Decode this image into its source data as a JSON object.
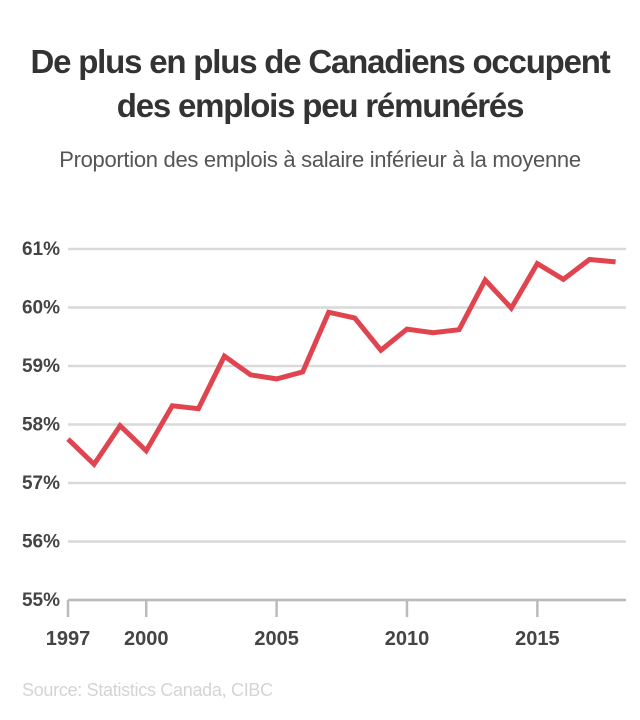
{
  "title_line1": "De plus en plus de Canadiens occupent",
  "title_line2": "des emplois peu rémunérés",
  "subtitle": "Proportion des emplois à salaire inférieur à la moyenne",
  "source": "Source: Statistics Canada, CIBC",
  "colors": {
    "line": "#e0454f",
    "grid": "#d9d9d9",
    "axis": "#bbbbbb",
    "tick": "#444444"
  },
  "chart_data": {
    "type": "line",
    "title": "De plus en plus de Canadiens occupent des emplois peu rémunérés",
    "subtitle": "Proportion des emplois à salaire inférieur à la moyenne",
    "xlabel": "",
    "ylabel": "",
    "xlim": [
      1997,
      2018.4
    ],
    "ylim": [
      55,
      61
    ],
    "y_ticks": [
      55,
      56,
      57,
      58,
      59,
      60,
      61
    ],
    "y_tick_labels": [
      "55%",
      "56%",
      "57%",
      "58%",
      "59%",
      "60%",
      "61%"
    ],
    "x_ticks": [
      1997,
      2000,
      2005,
      2010,
      2015
    ],
    "x_tick_labels": [
      "1997",
      "2000",
      "2005",
      "2010",
      "2015"
    ],
    "grid": "horizontal",
    "series": [
      {
        "x": [
          1997,
          1998,
          1999,
          2000,
          2001,
          2002,
          2003,
          2004,
          2005,
          2006,
          2007,
          2008,
          2009,
          2010,
          2011,
          2012,
          2013,
          2014,
          2015,
          2016,
          2017,
          2018
        ],
        "values": [
          57.75,
          57.32,
          57.98,
          57.55,
          58.32,
          58.27,
          59.17,
          58.85,
          58.78,
          58.9,
          59.92,
          59.82,
          59.27,
          59.63,
          59.57,
          59.62,
          60.47,
          59.99,
          60.75,
          60.48,
          60.82,
          60.78
        ]
      }
    ]
  }
}
